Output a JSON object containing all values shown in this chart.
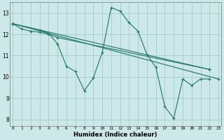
{
  "title": "",
  "xlabel": "Humidex (Indice chaleur)",
  "background_color": "#cce8e8",
  "grid_color": "#a8cfcf",
  "line_color": "#2a7a6a",
  "line1": {
    "x": [
      0,
      1,
      2,
      3,
      4,
      5,
      22
    ],
    "y": [
      12.5,
      12.25,
      12.15,
      12.1,
      12.0,
      11.85,
      10.35
    ]
  },
  "line2": {
    "x": [
      0,
      3,
      4,
      5,
      6,
      7,
      8,
      9,
      10,
      11,
      12,
      13,
      14,
      15,
      16,
      17,
      18,
      19,
      20,
      21,
      22
    ],
    "y": [
      12.5,
      12.2,
      12.05,
      11.55,
      10.5,
      10.25,
      9.35,
      9.95,
      11.15,
      13.25,
      13.1,
      12.55,
      12.15,
      11.05,
      10.45,
      8.6,
      8.05,
      9.9,
      9.6,
      9.9,
      9.9
    ]
  },
  "line3": {
    "x": [
      0,
      22
    ],
    "y": [
      12.5,
      10.35
    ]
  },
  "line4": {
    "x": [
      0,
      23
    ],
    "y": [
      12.5,
      9.9
    ]
  },
  "xlim": [
    -0.3,
    23.3
  ],
  "ylim": [
    7.7,
    13.5
  ],
  "yticks": [
    8,
    9,
    10,
    11,
    12,
    13
  ],
  "xticks": [
    0,
    1,
    2,
    3,
    4,
    5,
    6,
    7,
    8,
    9,
    10,
    11,
    12,
    13,
    14,
    15,
    16,
    17,
    18,
    19,
    20,
    21,
    22,
    23
  ]
}
